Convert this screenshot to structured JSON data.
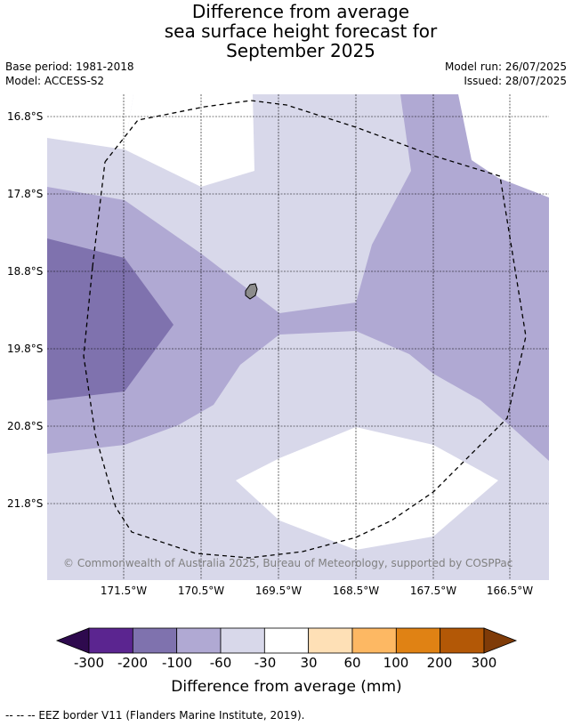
{
  "title_lines": [
    "Difference from average",
    "sea surface height forecast for",
    "September 2025"
  ],
  "meta_left": [
    "Base period: 1981-2018",
    "Model: ACCESS-S2"
  ],
  "meta_right": [
    "Model run: 26/07/2025",
    "Issued: 28/07/2025"
  ],
  "y_ticks": [
    "16.8°S",
    "17.8°S",
    "18.8°S",
    "19.8°S",
    "20.8°S",
    "21.8°S"
  ],
  "x_ticks": [
    "171.5°W",
    "170.5°W",
    "169.5°W",
    "168.5°W",
    "167.5°W",
    "166.5°W"
  ],
  "copyright": "© Commonwealth of Australia 2025, Bureau of Meteorology, supported by COSPPac",
  "colorbar": {
    "ticks": [
      "-300",
      "-200",
      "-100",
      "-60",
      "-30",
      "30",
      "60",
      "100",
      "200",
      "300"
    ],
    "colors": [
      "#2e0a4e",
      "#5b2590",
      "#7f72ae",
      "#b0a9d3",
      "#d8d8ea",
      "#ffffff",
      "#fee0b6",
      "#fdb863",
      "#e08214",
      "#b35806",
      "#7f3b08"
    ],
    "title": "Difference from average (mm)"
  },
  "footer": "--  --  -- EEZ border V11 (Flanders Marine Institute, 2019).",
  "colors": {
    "level_neg30_60": "#d8d8ea",
    "level_neg60_100": "#b0a9d3",
    "level_neg100_200": "#7f72ae",
    "land": "#8c8c8c"
  }
}
